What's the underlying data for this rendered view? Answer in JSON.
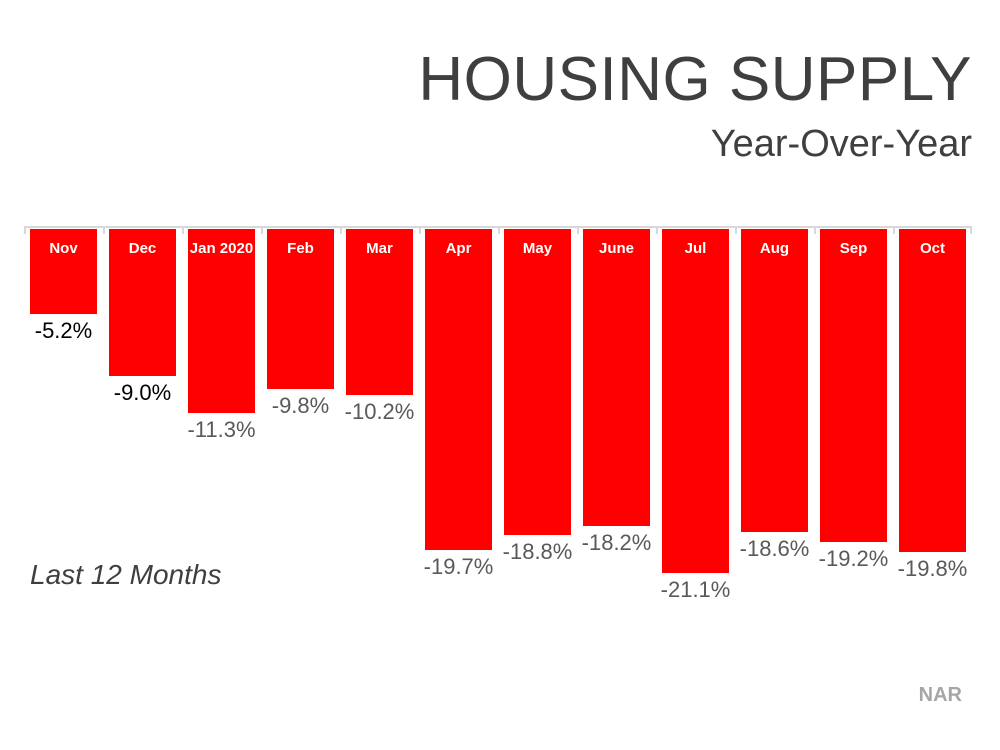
{
  "header": {
    "title": "HOUSING SUPPLY",
    "subtitle": "Year-Over-Year"
  },
  "caption": "Last 12 Months",
  "source": "NAR",
  "colors": {
    "bar": "#fe0000",
    "bar_month_label": "#ffffff",
    "axis_line": "#d8d8d8",
    "title_text": "#3f3f3f",
    "value_label_dark": "#000000",
    "value_label_gray": "#595959",
    "source_text": "#a6a6a6"
  },
  "chart_data": {
    "type": "bar",
    "orientation": "vertical-descending-from-top-baseline",
    "title": "HOUSING SUPPLY",
    "subtitle": "Year-Over-Year",
    "xlabel": "",
    "ylabel": "",
    "baseline": 0,
    "ylim": [
      -22,
      0
    ],
    "grid": false,
    "legend": false,
    "axis_position": "top",
    "categories": [
      "Nov",
      "Dec",
      "Jan 2020",
      "Feb",
      "Mar",
      "Apr",
      "May",
      "June",
      "Jul",
      "Aug",
      "Sep",
      "Oct"
    ],
    "values": [
      -5.2,
      -9.0,
      -11.3,
      -9.8,
      -10.2,
      -19.7,
      -18.8,
      -18.2,
      -21.1,
      -18.6,
      -19.2,
      -19.8
    ],
    "value_labels": [
      "-5.2%",
      "-9.0%",
      "-11.3%",
      "-9.8%",
      "-10.2%",
      "-19.7%",
      "-18.8%",
      "-18.2%",
      "-21.1%",
      "-18.6%",
      "-19.2%",
      "-19.8%"
    ],
    "value_label_colors": [
      "#000000",
      "#000000",
      "#595959",
      "#595959",
      "#595959",
      "#595959",
      "#595959",
      "#595959",
      "#595959",
      "#595959",
      "#595959",
      "#595959"
    ]
  }
}
